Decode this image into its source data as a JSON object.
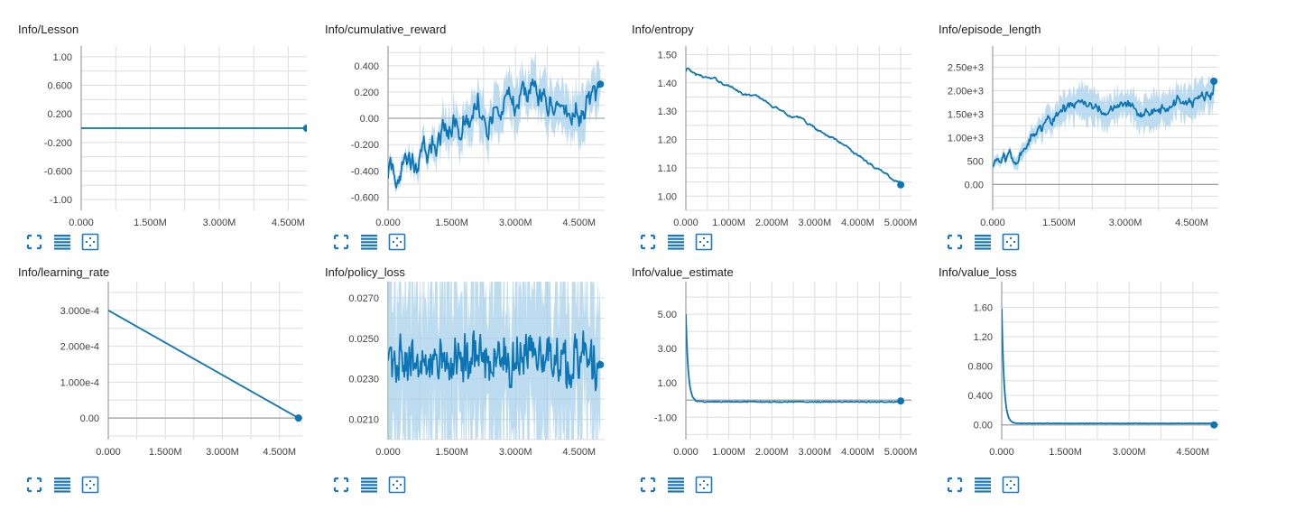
{
  "theme": {
    "line": "#0b75b5",
    "band": "#a8d0ea",
    "grid": "#dddddd",
    "axis": "#9e9e9e",
    "icon": "#1a78c2"
  },
  "toolbar_icons": [
    "fullscreen-icon",
    "toggle-log-scale-icon",
    "fit-domain-icon"
  ],
  "chart_data": [
    {
      "title": "Info/Lesson",
      "type": "line",
      "yticks": [
        "1.00",
        "0.600",
        "0.200",
        "-0.200",
        "-0.600",
        "-1.00"
      ],
      "ytick_values": [
        1.0,
        0.6,
        0.2,
        -0.2,
        -0.6,
        -1.0
      ],
      "ylim": [
        -1.15,
        1.15
      ],
      "xticks": [
        "0.000",
        "1.500M",
        "3.000M",
        "4.500M"
      ],
      "xtick_values": [
        0,
        1500000,
        3000000,
        4500000
      ],
      "xlim": [
        0,
        5100000
      ],
      "shape": "const",
      "params": [
        0.0
      ],
      "series": {
        "x_start": 0,
        "x_end": 4900000,
        "y_start": 0.0,
        "y_end": 0.0
      }
    },
    {
      "title": "Info/cumulative_reward",
      "type": "line",
      "yticks": [
        "0.400",
        "0.200",
        "0.00",
        "-0.200",
        "-0.400",
        "-0.600"
      ],
      "ytick_values": [
        0.4,
        0.2,
        0.0,
        -0.2,
        -0.4,
        -0.6
      ],
      "ylim": [
        -0.7,
        0.55
      ],
      "xticks": [
        "0.000",
        "1.500M",
        "3.000M",
        "4.500M"
      ],
      "xtick_values": [
        0,
        1500000,
        3000000,
        4500000
      ],
      "xlim": [
        0,
        5100000
      ],
      "shape": "reward",
      "params": [
        -0.46,
        0.1,
        0.12,
        0.2
      ],
      "series": {
        "x_start": 0,
        "x_end": 5000000,
        "y_start": -0.46,
        "y_end": 0.26
      }
    },
    {
      "title": "Info/entropy",
      "type": "line",
      "yticks": [
        "1.50",
        "1.40",
        "1.30",
        "1.20",
        "1.10",
        "1.00"
      ],
      "ytick_values": [
        1.5,
        1.4,
        1.3,
        1.2,
        1.1,
        1.0
      ],
      "ylim": [
        0.95,
        1.53
      ],
      "xticks": [
        "0.000",
        "1.000M",
        "2.000M",
        "3.000M",
        "4.000M",
        "5.000M"
      ],
      "xtick_values": [
        0,
        1000000,
        2000000,
        3000000,
        4000000,
        5000000
      ],
      "xlim": [
        0,
        5250000
      ],
      "shape": "entropy",
      "params": [
        1.44,
        1.04,
        0.008,
        0.0
      ],
      "series": {
        "x_start": 0,
        "x_end": 5000000,
        "y_start": 1.44,
        "y_end": 1.04
      }
    },
    {
      "title": "Info/episode_length",
      "type": "line",
      "yticks": [
        "2.50e+3",
        "2.00e+3",
        "1.50e+3",
        "1.00e+3",
        "500",
        "0.00"
      ],
      "ytick_values": [
        2500,
        2000,
        1500,
        1000,
        500,
        0
      ],
      "ylim": [
        -550,
        2950
      ],
      "xticks": [
        "0.000",
        "1.500M",
        "3.000M",
        "4.500M"
      ],
      "xtick_values": [
        0,
        1500000,
        3000000,
        4500000
      ],
      "xlim": [
        0,
        5100000
      ],
      "shape": "reward",
      "params": [
        420,
        1700,
        150,
        400
      ],
      "series": {
        "x_start": 0,
        "x_end": 5000000,
        "y_start": 420,
        "y_end": 2200
      }
    },
    {
      "title": "Info/learning_rate",
      "type": "line",
      "yticks": [
        "3.000e-4",
        "2.000e-4",
        "1.000e-4",
        "0.00"
      ],
      "ytick_values": [
        0.0003,
        0.0002,
        0.0001,
        0.0
      ],
      "ylim": [
        -6e-05,
        0.00038
      ],
      "xticks": [
        "0.000",
        "1.500M",
        "3.000M",
        "4.500M"
      ],
      "xtick_values": [
        0,
        1500000,
        3000000,
        4500000
      ],
      "xlim": [
        0,
        5100000
      ],
      "shape": "linear",
      "params": [
        0.0003,
        0.0
      ],
      "series": {
        "x_start": 0,
        "x_end": 5000000,
        "y_start": 0.0003,
        "y_end": 0.0
      }
    },
    {
      "title": "Info/policy_loss",
      "type": "line",
      "yticks": [
        "0.0270",
        "0.0250",
        "0.0230",
        "0.0210"
      ],
      "ytick_values": [
        0.027,
        0.025,
        0.023,
        0.021
      ],
      "ylim": [
        0.02,
        0.0278
      ],
      "xticks": [
        "0.000",
        "1.500M",
        "3.000M",
        "4.500M"
      ],
      "xtick_values": [
        0,
        1500000,
        3000000,
        4500000
      ],
      "xlim": [
        0,
        5100000
      ],
      "shape": "noise",
      "params": [
        0.0239,
        0.0011,
        0.005
      ],
      "series": {
        "x_start": 0,
        "x_end": 5000000,
        "y_start": 0.0239,
        "y_end": 0.0237
      }
    },
    {
      "title": "Info/value_estimate",
      "type": "line",
      "yticks": [
        "5.00",
        "3.00",
        "1.00",
        "-1.00"
      ],
      "ytick_values": [
        5.0,
        3.0,
        1.0,
        -1.0
      ],
      "ylim": [
        -2.3,
        6.9
      ],
      "xticks": [
        "0.000",
        "1.000M",
        "2.000M",
        "3.000M",
        "4.000M",
        "5.000M"
      ],
      "xtick_values": [
        0,
        1000000,
        2000000,
        3000000,
        4000000,
        5000000
      ],
      "xlim": [
        0,
        5250000
      ],
      "shape": "spike",
      "params": [
        5.0,
        -0.1,
        0.06
      ],
      "series": {
        "x_start": 0,
        "x_end": 5000000,
        "y_start": 5.0,
        "y_end": -0.05
      }
    },
    {
      "title": "Info/value_loss",
      "type": "line",
      "yticks": [
        "1.60",
        "1.20",
        "0.800",
        "0.400",
        "0.00"
      ],
      "ytick_values": [
        1.6,
        1.2,
        0.8,
        0.4,
        0.0
      ],
      "ylim": [
        -0.2,
        1.95
      ],
      "xticks": [
        "0.000",
        "1.500M",
        "3.000M",
        "4.500M"
      ],
      "xtick_values": [
        0,
        1500000,
        3000000,
        4500000
      ],
      "xlim": [
        0,
        5100000
      ],
      "shape": "spike",
      "params": [
        1.58,
        0.02,
        0.005
      ],
      "series": {
        "x_start": 0,
        "x_end": 5000000,
        "y_start": 1.58,
        "y_end": 0.0
      }
    }
  ]
}
